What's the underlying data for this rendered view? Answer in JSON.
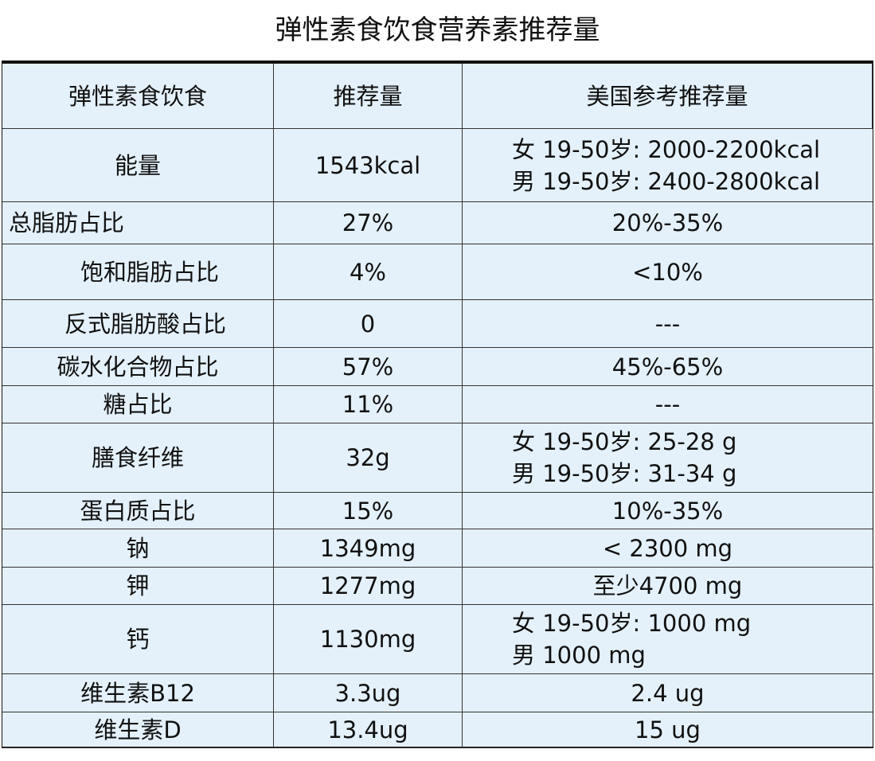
{
  "title": "弹性素食饮食营养素推荐量",
  "table": {
    "header": [
      "弹性素食饮食",
      "推荐量",
      "美国参考推荐量"
    ],
    "rows": [
      [
        "能量",
        "1543kcal",
        [
          "女 19-50岁: 2000-2200kcal",
          "男 19-50岁: 2400-2800kcal"
        ]
      ],
      [
        "总脂肪占比",
        "27%",
        "20%-35%"
      ],
      [
        "饱和脂肪占比",
        "4%",
        "<10%"
      ],
      [
        "反式脂肪酸占比",
        "0",
        "---"
      ],
      [
        "碳水化合物占比",
        "57%",
        "45%-65%"
      ],
      [
        "糖占比",
        "11%",
        "---"
      ],
      [
        "膳食纤维",
        "32g",
        [
          "女 19-50岁: 25-28 g",
          "男 19-50岁: 31-34 g"
        ]
      ],
      [
        "蛋白质占比",
        "15%",
        "10%-35%"
      ],
      [
        "钠",
        "1349mg",
        "< 2300 mg"
      ],
      [
        "钾",
        "1277mg",
        "至少4700 mg"
      ],
      [
        "钙",
        "1130mg",
        [
          "女 19-50岁: 1000 mg",
          "男 1000 mg"
        ]
      ],
      [
        "维生素B12",
        "3.3ug",
        "2.4 ug"
      ],
      [
        "维生素D",
        "13.4ug",
        "15 ug"
      ]
    ]
  }
}
